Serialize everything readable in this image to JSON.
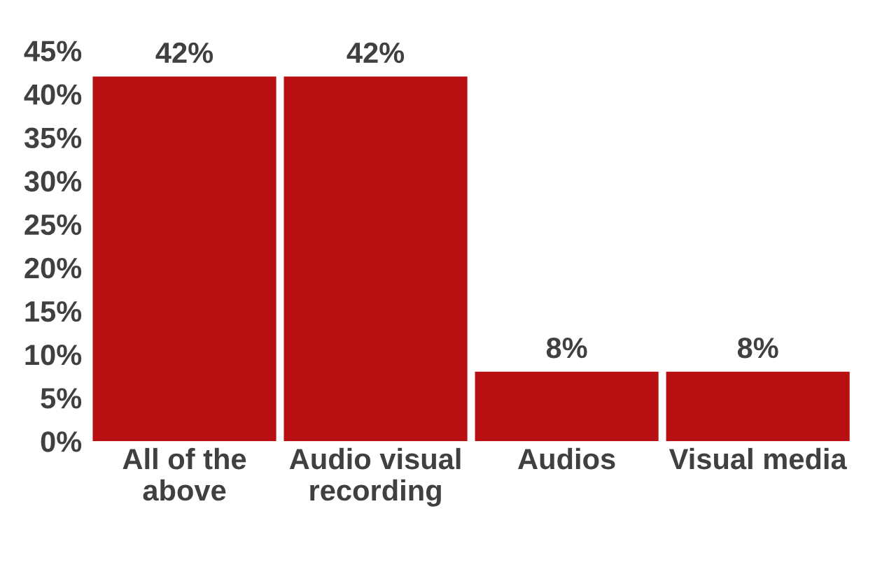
{
  "chart_data": {
    "type": "bar",
    "categories": [
      "All of the\nabove",
      "Audio visual\nrecording",
      "Audios",
      "Visual media"
    ],
    "values": [
      42,
      42,
      8,
      8
    ],
    "value_labels": [
      "42%",
      "42%",
      "8%",
      "8%"
    ],
    "color": "#b70f12",
    "ylim": [
      0,
      45
    ],
    "yticks": [
      {
        "value": 0,
        "label": "0%"
      },
      {
        "value": 5,
        "label": "5%"
      },
      {
        "value": 10,
        "label": "10%"
      },
      {
        "value": 15,
        "label": "15%"
      },
      {
        "value": 20,
        "label": "20%"
      },
      {
        "value": 25,
        "label": "25%"
      },
      {
        "value": 30,
        "label": "30%"
      },
      {
        "value": 35,
        "label": "35%"
      },
      {
        "value": 40,
        "label": "40%"
      },
      {
        "value": 45,
        "label": "45%"
      }
    ],
    "grid": false,
    "legend": false
  }
}
